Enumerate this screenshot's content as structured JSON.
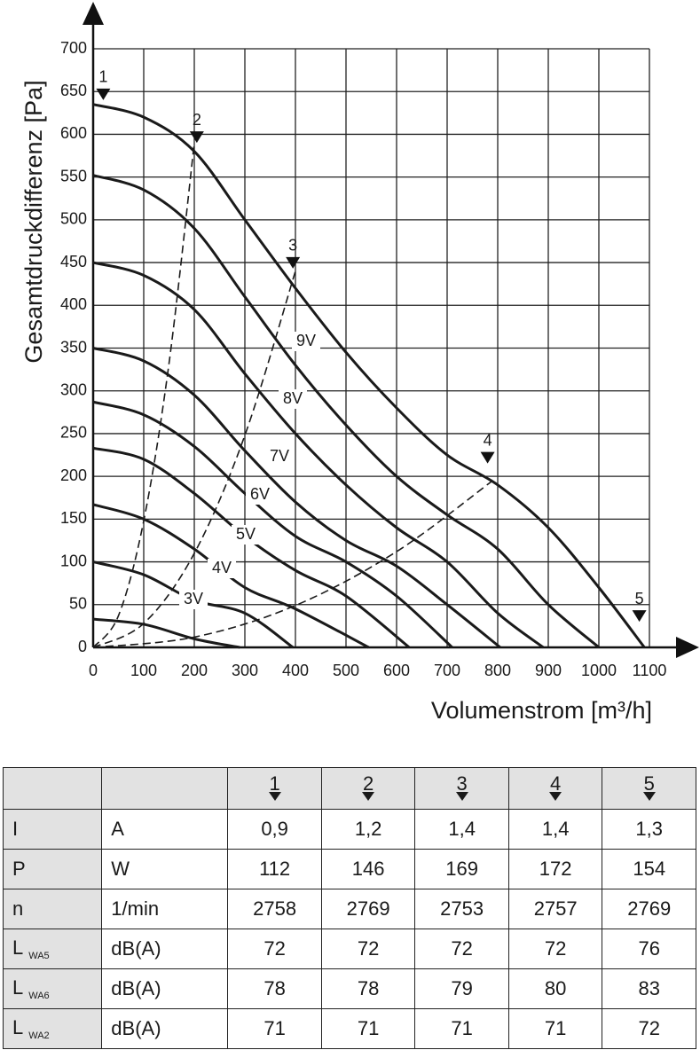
{
  "chart_data": {
    "type": "line",
    "xlabel": "Volumenstrom [m³/h]",
    "ylabel": "Gesamtdruckdifferenz [Pa]",
    "xlim": [
      0,
      1100
    ],
    "xticks": [
      0,
      100,
      200,
      300,
      400,
      500,
      600,
      700,
      800,
      900,
      1000,
      1100
    ],
    "ylim": [
      0,
      700
    ],
    "yticks": [
      0,
      50,
      100,
      150,
      200,
      250,
      300,
      350,
      400,
      450,
      500,
      550,
      600,
      650,
      700
    ],
    "grid": true,
    "series": [
      {
        "color": "#1a1a1a",
        "x": [
          0,
          100,
          200,
          300,
          400,
          500,
          600,
          700,
          800,
          900,
          1000,
          1090
        ],
        "values": [
          635,
          620,
          580,
          500,
          420,
          345,
          280,
          225,
          190,
          140,
          70,
          0
        ]
      },
      {
        "name": "9V",
        "color": "#1a1a1a",
        "x": [
          0,
          100,
          200,
          300,
          400,
          500,
          600,
          700,
          800,
          900,
          1000
        ],
        "values": [
          552,
          535,
          490,
          410,
          330,
          260,
          200,
          155,
          115,
          50,
          0
        ]
      },
      {
        "name": "8V",
        "color": "#1a1a1a",
        "x": [
          0,
          100,
          200,
          300,
          400,
          500,
          600,
          700,
          800,
          890
        ],
        "values": [
          450,
          435,
          395,
          320,
          250,
          190,
          140,
          100,
          40,
          0
        ]
      },
      {
        "name": "7V",
        "color": "#1a1a1a",
        "x": [
          0,
          100,
          200,
          300,
          400,
          500,
          600,
          700,
          805
        ],
        "values": [
          350,
          335,
          295,
          230,
          170,
          125,
          95,
          50,
          0
        ]
      },
      {
        "name": "6V",
        "color": "#1a1a1a",
        "x": [
          0,
          100,
          200,
          300,
          400,
          500,
          600,
          710
        ],
        "values": [
          287,
          272,
          235,
          180,
          130,
          100,
          60,
          0
        ]
      },
      {
        "name": "5V",
        "color": "#1a1a1a",
        "x": [
          0,
          100,
          200,
          300,
          400,
          500,
          625
        ],
        "values": [
          233,
          220,
          180,
          130,
          90,
          60,
          0
        ]
      },
      {
        "name": "4V",
        "color": "#1a1a1a",
        "x": [
          0,
          100,
          200,
          300,
          400,
          545
        ],
        "values": [
          167,
          150,
          115,
          70,
          45,
          0
        ]
      },
      {
        "name": "3V",
        "color": "#1a1a1a",
        "x": [
          0,
          100,
          200,
          300,
          395
        ],
        "values": [
          100,
          85,
          55,
          40,
          0
        ]
      },
      {
        "color": "#1a1a1a",
        "x": [
          0,
          100,
          200,
          290
        ],
        "values": [
          33,
          27,
          10,
          0
        ]
      }
    ],
    "system_lines": [
      {
        "color": "#1a1a1a",
        "line_style": "dashed",
        "x": [
          0,
          50,
          100,
          150,
          200
        ],
        "values": [
          0,
          37,
          148,
          332,
          590
        ]
      },
      {
        "color": "#1a1a1a",
        "line_style": "dashed",
        "x": [
          0,
          100,
          200,
          300,
          400
        ],
        "values": [
          0,
          28,
          110,
          248,
          440
        ]
      },
      {
        "color": "#1a1a1a",
        "line_style": "dashed",
        "x": [
          0,
          200,
          400,
          600,
          790
        ],
        "values": [
          0,
          12,
          49,
          112,
          195
        ]
      }
    ],
    "operating_points": [
      {
        "label": "1",
        "x": 20,
        "y": 640
      },
      {
        "label": "2",
        "x": 205,
        "y": 590
      },
      {
        "label": "3",
        "x": 395,
        "y": 443
      },
      {
        "label": "4",
        "x": 780,
        "y": 215
      },
      {
        "label": "5",
        "x": 1080,
        "y": 30
      }
    ]
  },
  "table": {
    "header": [
      "1",
      "2",
      "3",
      "4",
      "5"
    ],
    "rows": [
      {
        "symbol": "I",
        "unit": "A",
        "cells": [
          "0,9",
          "1,2",
          "1,4",
          "1,4",
          "1,3"
        ]
      },
      {
        "symbol": "P",
        "unit": "W",
        "cells": [
          "112",
          "146",
          "169",
          "172",
          "154"
        ]
      },
      {
        "symbol": "n",
        "unit": "1/min",
        "cells": [
          "2758",
          "2769",
          "2753",
          "2757",
          "2769"
        ]
      },
      {
        "symbol": "L",
        "sub": "WA5",
        "unit": "dB(A)",
        "cells": [
          "72",
          "72",
          "72",
          "72",
          "76"
        ]
      },
      {
        "symbol": "L",
        "sub": "WA6",
        "unit": "dB(A)",
        "cells": [
          "78",
          "78",
          "79",
          "80",
          "83"
        ]
      },
      {
        "symbol": "L",
        "sub": "WA2",
        "unit": "dB(A)",
        "cells": [
          "71",
          "71",
          "71",
          "71",
          "72"
        ]
      }
    ]
  }
}
